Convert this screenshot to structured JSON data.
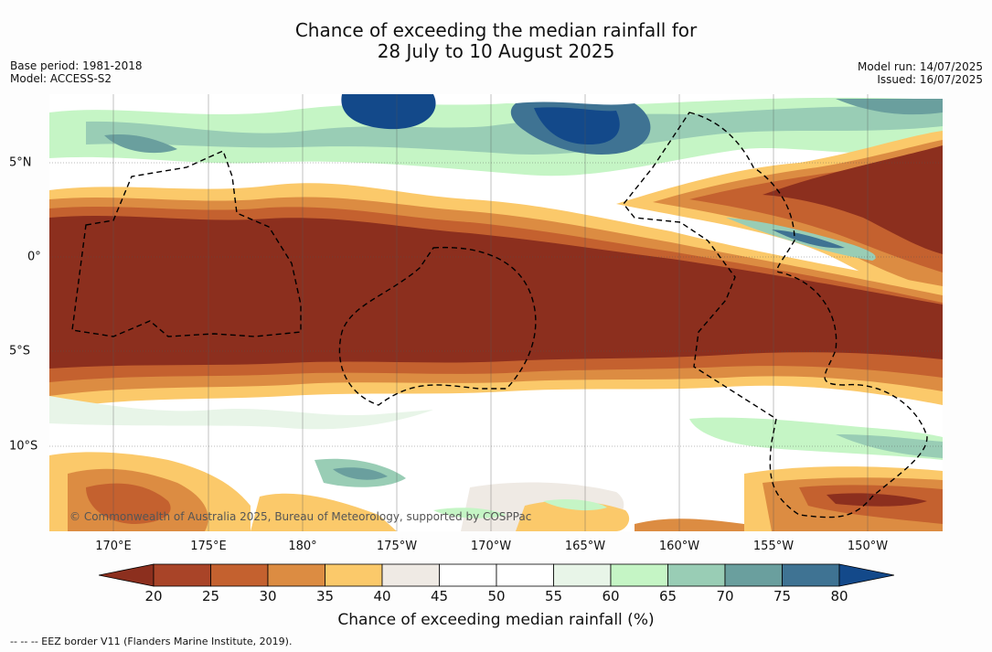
{
  "title_line1": "Chance of exceeding the median rainfall for",
  "title_line2": "28 July to 10 August 2025",
  "base_period": "Base period: 1981-2018",
  "model": "Model: ACCESS-S2",
  "model_run": "Model run: 14/07/2025",
  "issued": "Issued: 16/07/2025",
  "lon_labels": [
    "170°E",
    "175°E",
    "180°",
    "175°W",
    "170°W",
    "165°W",
    "160°W",
    "155°W",
    "150°W"
  ],
  "lat_labels": [
    "5°N",
    "0°",
    "5°S",
    "10°S"
  ],
  "copyright": "© Commonwealth of Australia 2025, Bureau of Meteorology, supported by COSPPac",
  "colorbar": {
    "ticks": [
      "20",
      "25",
      "30",
      "35",
      "40",
      "45",
      "50",
      "55",
      "60",
      "65",
      "70",
      "75",
      "80"
    ],
    "colors": [
      "#8c2f1e",
      "#a94428",
      "#c4612f",
      "#dc8c42",
      "#fbc96a",
      "#efeae4",
      "#ffffff",
      "#ffffff",
      "#e8f5e8",
      "#c5f5c5",
      "#99cdb5",
      "#6a9f9e",
      "#3f7393",
      "#13498a"
    ],
    "title": "Chance of exceeding median rainfall (%)"
  },
  "eez_note": "--  --  -- EEZ border V11 (Flanders Marine Institute, 2019)."
}
